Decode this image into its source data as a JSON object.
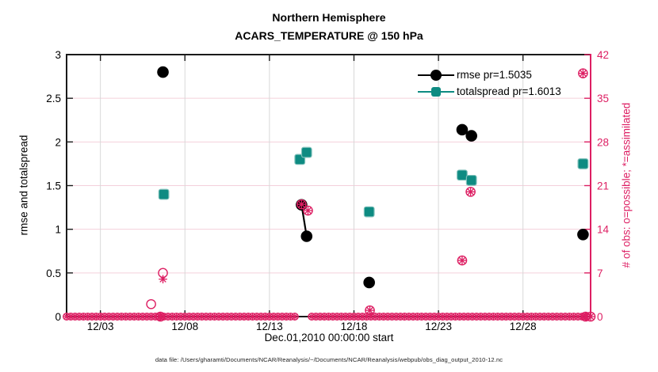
{
  "title": {
    "line1": "Northern Hemisphere",
    "line2": "ACARS_TEMPERATURE @ 150 hPa"
  },
  "axes": {
    "left": {
      "label": "rmse and totalspread",
      "ticks": [
        0,
        0.5,
        1,
        1.5,
        2,
        2.5,
        3
      ],
      "range": [
        0,
        3
      ],
      "color": "#000000"
    },
    "right": {
      "label": "# of obs: o=possible; *=assimilated",
      "ticks": [
        0,
        7,
        14,
        21,
        28,
        35,
        42
      ],
      "range": [
        0,
        42
      ],
      "color": "#dd1f63"
    },
    "x": {
      "label": "Dec.01,2010 00:00:00 start",
      "tick_labels": [
        "12/03",
        "12/08",
        "12/13",
        "12/18",
        "12/23",
        "12/28"
      ],
      "tick_days": [
        3,
        8,
        13,
        18,
        23,
        28
      ],
      "range_days": [
        1,
        32
      ]
    }
  },
  "legend": [
    {
      "label": "rmse pr=1.5035",
      "marker": "circle",
      "color": "#000000"
    },
    {
      "label": "totalspread pr=1.6013",
      "marker": "square",
      "color": "#0e8b82"
    }
  ],
  "caption": "data file: /Users/gharamti/Documents/NCAR/Reanalysis/~/Documents/NCAR/Reanalysis/webpub/obs_diag_output_2010-12.nc",
  "style": {
    "magenta": "#dd1f63",
    "teal": "#0e8b82",
    "teal_edge": "#7dbfb9",
    "h_gridline": "#f4d0db",
    "v_gridline": "#d8d8d8",
    "frame": "#1a1a1a"
  },
  "chart_data": {
    "type": "line",
    "x_unit": "day of December 2010",
    "series": [
      {
        "name": "rmse",
        "marker": "filled-circle",
        "color": "#000000",
        "points": [
          [
            6.7,
            2.8
          ],
          [
            14.9,
            1.28
          ],
          [
            15.2,
            0.92
          ],
          [
            18.9,
            0.39
          ],
          [
            24.4,
            2.14
          ],
          [
            24.95,
            2.07
          ],
          [
            31.55,
            0.94
          ]
        ],
        "segments": [
          [
            1,
            2
          ],
          [
            4,
            5
          ]
        ]
      },
      {
        "name": "totalspread",
        "marker": "filled-square",
        "color": "#0e8b82",
        "points": [
          [
            6.75,
            1.4
          ],
          [
            14.8,
            1.8
          ],
          [
            15.2,
            1.88
          ],
          [
            18.9,
            1.2
          ],
          [
            24.4,
            1.62
          ],
          [
            24.95,
            1.56
          ],
          [
            31.55,
            1.75
          ]
        ],
        "segments": [
          [
            1,
            2
          ],
          [
            4,
            5
          ]
        ]
      }
    ],
    "obs_counts": {
      "color": "#dd1f63",
      "possible_marker": "o",
      "assimilated_marker": "*",
      "nonzero": [
        {
          "day": 6.0,
          "possible": 2,
          "assimilated": null
        },
        {
          "day": 6.7,
          "possible": 7,
          "assimilated": 6
        },
        {
          "day": 14.9,
          "possible": 18,
          "assimilated": 18
        },
        {
          "day": 15.28,
          "possible": 17,
          "assimilated": 17
        },
        {
          "day": 18.94,
          "possible": 1,
          "assimilated": 1
        },
        {
          "day": 24.4,
          "possible": 9,
          "assimilated": 9
        },
        {
          "day": 24.9,
          "possible": 20,
          "assimilated": 20
        },
        {
          "day": 31.55,
          "possible": 39,
          "assimilated": 39
        }
      ],
      "zero_row": {
        "start_day": 1.0,
        "end_day": 31.75,
        "step_days": 0.25,
        "skip_ranges": [
          [
            14.7,
            15.4
          ]
        ],
        "big_marker_days": [
          6.55,
          31.7,
          32.0
        ]
      }
    }
  }
}
